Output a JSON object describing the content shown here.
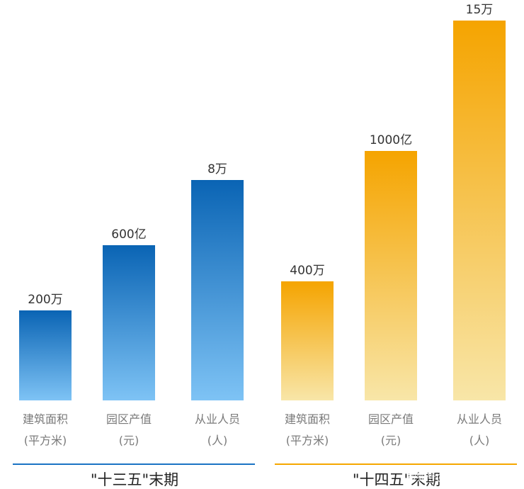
{
  "chart_data": {
    "type": "bar",
    "groups": [
      {
        "name": "\"十三五\"末期",
        "color_top": "#0a64b4",
        "color_bottom": "#7ec3f5",
        "line_color": "#1b74c4",
        "bars": [
          {
            "category_line1": "建筑面积",
            "category_line2": "(平方米)",
            "label": "200万",
            "value": 200
          },
          {
            "category_line1": "园区产值",
            "category_line2": "(元)",
            "label": "600亿",
            "value": 600
          },
          {
            "category_line1": "从业人员",
            "category_line2": "(人)",
            "label": "8万",
            "value": 8
          }
        ]
      },
      {
        "name": "\"十四五\"末期",
        "color_top": "#f5a400",
        "color_bottom": "#f8e6a8",
        "line_color": "#f5a700",
        "bars": [
          {
            "category_line1": "建筑面积",
            "category_line2": "(平方米)",
            "label": "400万",
            "value": 400
          },
          {
            "category_line1": "园区产值",
            "category_line2": "(元)",
            "label": "1000亿",
            "value": 1000
          },
          {
            "category_line1": "从业人员",
            "category_line2": "(人)",
            "label": "15万",
            "value": 15
          }
        ]
      }
    ],
    "grid": false,
    "legend": "none"
  },
  "watermark": "搜狐号@搜狐焦点天门站"
}
